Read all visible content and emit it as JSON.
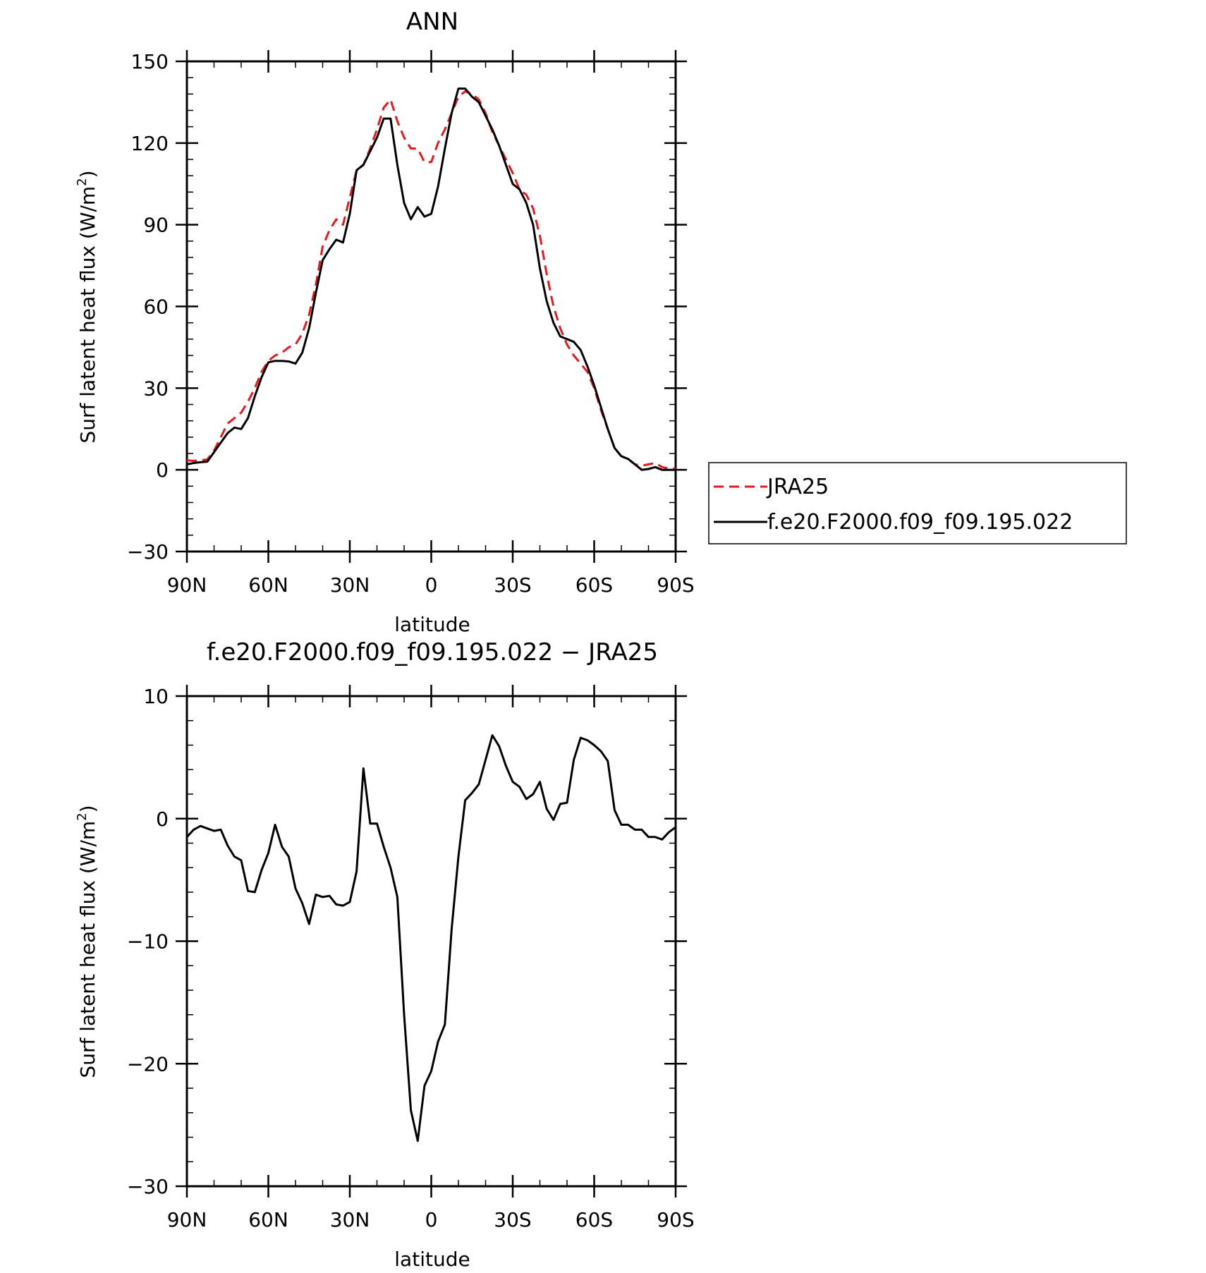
{
  "chart_data": [
    {
      "type": "line",
      "title": "ANN",
      "xlabel": "latitude",
      "ylabel": "Surf latent heat flux (W/m",
      "ylabel_sup": "2",
      "ylabel_end": ")",
      "ylim": [
        -30,
        150
      ],
      "xlim": [
        -90,
        90
      ],
      "yticks": [
        -30,
        0,
        30,
        60,
        90,
        120,
        150
      ],
      "ytick_labels": [
        "−30",
        "0",
        "30",
        "60",
        "90",
        "120",
        "150"
      ],
      "xticks": [
        -90,
        -60,
        -30,
        0,
        30,
        60,
        90
      ],
      "xtick_labels": [
        "90N",
        "60N",
        "30N",
        "0",
        "30S",
        "60S",
        "90S"
      ],
      "legend_placement": "right",
      "series": [
        {
          "name": "JRA25",
          "color": "#e41a1c",
          "style": "dashed",
          "x": [
            -90,
            -87.5,
            -85,
            -82.5,
            -80,
            -77.5,
            -75,
            -72.5,
            -70,
            -67.5,
            -65,
            -62.5,
            -60,
            -57.5,
            -55,
            -52.5,
            -50,
            -47.5,
            -45,
            -42.5,
            -40,
            -37.5,
            -35,
            -32.5,
            -30,
            -27.5,
            -25,
            -22.5,
            -20,
            -17.5,
            -15,
            -12.5,
            -10,
            -7.5,
            -5,
            -2.5,
            0,
            2.5,
            5,
            7.5,
            10,
            12.5,
            15,
            17.5,
            20,
            22.5,
            25,
            27.5,
            30,
            32.5,
            35,
            37.5,
            40,
            42.5,
            45,
            47.5,
            50,
            52.5,
            55,
            57.5,
            60,
            62.5,
            65,
            67.5,
            70,
            72.5,
            75,
            77.5,
            80,
            82.5,
            85,
            87.5,
            90
          ],
          "y": [
            3.5,
            3.3,
            3.5,
            3.8,
            7,
            12,
            17,
            19,
            21,
            25,
            30,
            36,
            40,
            42,
            43,
            45,
            46,
            50,
            57,
            68,
            82,
            88,
            92,
            90,
            100,
            110,
            112,
            118,
            125,
            133,
            136,
            128,
            122,
            118,
            118,
            113,
            113,
            120,
            125,
            131,
            137,
            139,
            138,
            136,
            131,
            124,
            119,
            114,
            109,
            103,
            101,
            96,
            86,
            72,
            60,
            52,
            46,
            42,
            39,
            36,
            30,
            22,
            15,
            8,
            5,
            4,
            2,
            1.5,
            2,
            2.5,
            1,
            0.5,
            0.5
          ]
        },
        {
          "name": "f.e20.F2000.f09_f09.195.022",
          "color": "#000000",
          "style": "solid",
          "x": [
            -90,
            -87.5,
            -85,
            -82.5,
            -80,
            -77.5,
            -75,
            -72.5,
            -70,
            -67.5,
            -65,
            -62.5,
            -60,
            -57.5,
            -55,
            -52.5,
            -50,
            -47.5,
            -45,
            -42.5,
            -40,
            -37.5,
            -35,
            -32.5,
            -30,
            -27.5,
            -25,
            -22.5,
            -20,
            -17.5,
            -15,
            -12.5,
            -10,
            -7.5,
            -5,
            -2.5,
            0,
            2.5,
            5,
            7.5,
            10,
            12.5,
            15,
            17.5,
            20,
            22.5,
            25,
            27.5,
            30,
            32.5,
            35,
            37.5,
            40,
            42.5,
            45,
            47.5,
            50,
            52.5,
            55,
            57.5,
            60,
            62.5,
            65,
            67.5,
            70,
            72.5,
            75,
            77.5,
            80,
            82.5,
            85,
            87.5,
            90
          ],
          "y": [
            2,
            2.5,
            2.8,
            3,
            6.5,
            10,
            13.5,
            15.5,
            15,
            19,
            27,
            34,
            39.5,
            40,
            40,
            39.8,
            39,
            43,
            52,
            65,
            77,
            81,
            84.5,
            83.5,
            94,
            110,
            112,
            117,
            122,
            129,
            129,
            112,
            98,
            92,
            96.5,
            93,
            94,
            104,
            118,
            131,
            140,
            140,
            137,
            135,
            130,
            125,
            119,
            112,
            105,
            103,
            98,
            90,
            74,
            62,
            54,
            49,
            48,
            47,
            44,
            38,
            31,
            23,
            15,
            8,
            5,
            4,
            2,
            0,
            0.3,
            1,
            0,
            0,
            0
          ]
        }
      ]
    },
    {
      "type": "line",
      "title": "f.e20.F2000.f09_f09.195.022 − JRA25",
      "xlabel": "latitude",
      "ylabel": "Surf latent heat flux (W/m",
      "ylabel_sup": "2",
      "ylabel_end": ")",
      "ylim": [
        -30,
        10
      ],
      "xlim": [
        -90,
        90
      ],
      "yticks": [
        -30,
        -20,
        -10,
        0,
        10
      ],
      "ytick_labels": [
        "−30",
        "−20",
        "−10",
        "0",
        "10"
      ],
      "xticks": [
        -90,
        -60,
        -30,
        0,
        30,
        60,
        90
      ],
      "xtick_labels": [
        "90N",
        "60N",
        "30N",
        "0",
        "30S",
        "60S",
        "90S"
      ],
      "series": [
        {
          "name": "",
          "color": "#000000",
          "style": "solid",
          "x": [
            -90,
            -87.5,
            -85,
            -82.5,
            -80,
            -77.5,
            -75,
            -72.5,
            -70,
            -67.5,
            -65,
            -62.5,
            -60,
            -57.5,
            -55,
            -52.5,
            -50,
            -47.5,
            -45,
            -42.5,
            -40,
            -37.5,
            -35,
            -32.5,
            -30,
            -27.5,
            -25,
            -22.5,
            -20,
            -17.5,
            -15,
            -12.5,
            -10,
            -7.5,
            -5,
            -2.5,
            0,
            2.5,
            5,
            7.5,
            10,
            12.5,
            15,
            17.5,
            20,
            22.5,
            25,
            27.5,
            30,
            32.5,
            35,
            37.5,
            40,
            42.5,
            45,
            47.5,
            50,
            52.5,
            55,
            57.5,
            60,
            62.5,
            65,
            67.5,
            70,
            72.5,
            75,
            77.5,
            80,
            82.5,
            85,
            87.5,
            90
          ],
          "y": [
            -1.5,
            -0.9,
            -0.6,
            -0.8,
            -1,
            -0.9,
            -2.2,
            -3.1,
            -3.4,
            -5.9,
            -6,
            -4.2,
            -2.8,
            -0.5,
            -2.3,
            -3.1,
            -5.7,
            -6.9,
            -8.6,
            -6.2,
            -6.4,
            -6.3,
            -7,
            -7.1,
            -6.8,
            -4.3,
            4.1,
            -0.4,
            -0.4,
            -2.3,
            -4,
            -6.4,
            -16,
            -23.8,
            -26.3,
            -21.8,
            -20.6,
            -18.2,
            -16.8,
            -9,
            -3.1,
            1.5,
            2.1,
            2.8,
            4.8,
            6.8,
            5.9,
            4.3,
            3,
            2.6,
            1.6,
            2,
            3,
            0.8,
            -0.1,
            1.2,
            1.3,
            4.8,
            6.6,
            6.4,
            6,
            5.5,
            4.7,
            0.7,
            -0.5,
            -0.5,
            -0.9,
            -0.9,
            -1.5,
            -1.5,
            -1.7,
            -1.1,
            -0.7
          ]
        }
      ]
    }
  ]
}
